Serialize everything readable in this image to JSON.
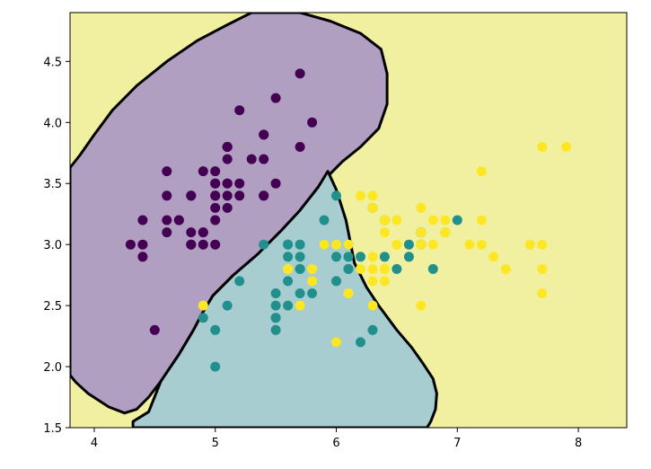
{
  "chart_data": {
    "type": "scatter",
    "title": "",
    "xlabel": "",
    "ylabel": "",
    "xlim": [
      3.8,
      8.4
    ],
    "ylim": [
      1.5,
      4.9
    ],
    "x_ticks": [
      4,
      5,
      6,
      7,
      8
    ],
    "y_ticks": [
      1.5,
      2.0,
      2.5,
      3.0,
      3.5,
      4.0,
      4.5
    ],
    "x_tick_labels": [
      "4",
      "5",
      "6",
      "7",
      "8"
    ],
    "y_tick_labels": [
      "1.5",
      "2.0",
      "2.5",
      "3.0",
      "3.5",
      "4.0",
      "4.5"
    ],
    "grid": false,
    "legend": false,
    "regions": [
      {
        "class": 0,
        "color": "#b19fc1",
        "boundary": [
          [
            3.8,
            3.63
          ],
          [
            3.88,
            3.73
          ],
          [
            4.0,
            3.9
          ],
          [
            4.15,
            4.1
          ],
          [
            4.35,
            4.3
          ],
          [
            4.6,
            4.5
          ],
          [
            4.85,
            4.67
          ],
          [
            5.1,
            4.8
          ],
          [
            5.3,
            4.9
          ],
          [
            5.7,
            4.9
          ],
          [
            5.95,
            4.83
          ],
          [
            6.2,
            4.73
          ],
          [
            6.37,
            4.6
          ],
          [
            6.42,
            4.4
          ],
          [
            6.42,
            4.15
          ],
          [
            6.35,
            3.95
          ],
          [
            6.2,
            3.8
          ],
          [
            6.05,
            3.68
          ],
          [
            5.95,
            3.58
          ],
          [
            5.85,
            3.47
          ],
          [
            5.7,
            3.28
          ],
          [
            5.55,
            3.12
          ],
          [
            5.35,
            2.92
          ],
          [
            5.15,
            2.75
          ],
          [
            4.98,
            2.58
          ],
          [
            4.9,
            2.45
          ],
          [
            4.82,
            2.3
          ],
          [
            4.7,
            2.1
          ],
          [
            4.55,
            1.88
          ],
          [
            4.45,
            1.75
          ],
          [
            4.35,
            1.65
          ],
          [
            4.25,
            1.62
          ],
          [
            4.12,
            1.67
          ],
          [
            3.95,
            1.78
          ],
          [
            3.85,
            1.87
          ],
          [
            3.8,
            1.93
          ]
        ]
      },
      {
        "class": 1,
        "color": "#a8cdd0",
        "boundary": [
          [
            4.32,
            1.5
          ],
          [
            4.32,
            1.55
          ],
          [
            4.45,
            1.63
          ],
          [
            4.55,
            1.88
          ],
          [
            4.7,
            2.1
          ],
          [
            4.82,
            2.3
          ],
          [
            4.9,
            2.45
          ],
          [
            4.98,
            2.58
          ],
          [
            5.15,
            2.75
          ],
          [
            5.35,
            2.92
          ],
          [
            5.55,
            3.12
          ],
          [
            5.7,
            3.28
          ],
          [
            5.85,
            3.47
          ],
          [
            5.93,
            3.6
          ],
          [
            6.0,
            3.45
          ],
          [
            6.08,
            3.2
          ],
          [
            6.15,
            2.85
          ],
          [
            6.25,
            2.65
          ],
          [
            6.35,
            2.5
          ],
          [
            6.5,
            2.3
          ],
          [
            6.62,
            2.16
          ],
          [
            6.72,
            2.02
          ],
          [
            6.8,
            1.9
          ],
          [
            6.83,
            1.78
          ],
          [
            6.82,
            1.65
          ],
          [
            6.78,
            1.55
          ],
          [
            6.75,
            1.5
          ]
        ]
      }
    ],
    "series": [
      {
        "class": 0,
        "color": "#440154",
        "points": [
          [
            5.1,
            3.5
          ],
          [
            4.9,
            3.0
          ],
          [
            4.7,
            3.2
          ],
          [
            4.6,
            3.1
          ],
          [
            5.0,
            3.6
          ],
          [
            5.4,
            3.9
          ],
          [
            4.6,
            3.4
          ],
          [
            5.0,
            3.4
          ],
          [
            4.4,
            2.9
          ],
          [
            4.9,
            3.1
          ],
          [
            5.4,
            3.7
          ],
          [
            4.8,
            3.4
          ],
          [
            4.8,
            3.0
          ],
          [
            4.3,
            3.0
          ],
          [
            5.8,
            4.0
          ],
          [
            5.7,
            4.4
          ],
          [
            5.4,
            3.9
          ],
          [
            5.1,
            3.5
          ],
          [
            5.7,
            3.8
          ],
          [
            5.1,
            3.8
          ],
          [
            5.4,
            3.4
          ],
          [
            5.1,
            3.7
          ],
          [
            4.6,
            3.6
          ],
          [
            5.1,
            3.3
          ],
          [
            4.8,
            3.4
          ],
          [
            5.0,
            3.0
          ],
          [
            5.0,
            3.4
          ],
          [
            5.2,
            3.5
          ],
          [
            5.2,
            3.4
          ],
          [
            4.7,
            3.2
          ],
          [
            4.8,
            3.1
          ],
          [
            5.4,
            3.4
          ],
          [
            5.2,
            4.1
          ],
          [
            5.5,
            4.2
          ],
          [
            4.9,
            3.1
          ],
          [
            5.0,
            3.2
          ],
          [
            5.5,
            3.5
          ],
          [
            4.9,
            3.6
          ],
          [
            4.4,
            3.0
          ],
          [
            5.1,
            3.4
          ],
          [
            5.0,
            3.5
          ],
          [
            4.5,
            2.3
          ],
          [
            4.4,
            3.2
          ],
          [
            5.0,
            3.5
          ],
          [
            5.1,
            3.8
          ],
          [
            4.8,
            3.0
          ],
          [
            5.1,
            3.8
          ],
          [
            4.6,
            3.2
          ],
          [
            5.3,
            3.7
          ],
          [
            5.0,
            3.3
          ]
        ]
      },
      {
        "class": 1,
        "color": "#21908d",
        "points": [
          [
            7.0,
            3.2
          ],
          [
            6.4,
            3.2
          ],
          [
            6.9,
            3.1
          ],
          [
            5.5,
            2.3
          ],
          [
            6.5,
            2.8
          ],
          [
            5.7,
            2.8
          ],
          [
            6.3,
            3.3
          ],
          [
            4.9,
            2.4
          ],
          [
            6.6,
            2.9
          ],
          [
            5.2,
            2.7
          ],
          [
            5.0,
            2.0
          ],
          [
            5.9,
            3.0
          ],
          [
            6.0,
            2.2
          ],
          [
            6.1,
            2.9
          ],
          [
            5.6,
            2.9
          ],
          [
            6.7,
            3.1
          ],
          [
            5.6,
            3.0
          ],
          [
            5.8,
            2.7
          ],
          [
            6.2,
            2.2
          ],
          [
            5.6,
            2.5
          ],
          [
            5.9,
            3.2
          ],
          [
            6.1,
            2.8
          ],
          [
            6.3,
            2.5
          ],
          [
            6.1,
            2.8
          ],
          [
            6.4,
            2.9
          ],
          [
            6.6,
            3.0
          ],
          [
            6.8,
            2.8
          ],
          [
            6.7,
            3.0
          ],
          [
            6.0,
            2.9
          ],
          [
            5.7,
            2.6
          ],
          [
            5.5,
            2.4
          ],
          [
            5.5,
            2.4
          ],
          [
            5.8,
            2.7
          ],
          [
            6.0,
            2.7
          ],
          [
            5.4,
            3.0
          ],
          [
            6.0,
            3.4
          ],
          [
            6.7,
            3.1
          ],
          [
            6.3,
            2.3
          ],
          [
            5.6,
            3.0
          ],
          [
            5.5,
            2.5
          ],
          [
            5.5,
            2.6
          ],
          [
            6.1,
            3.0
          ],
          [
            5.8,
            2.6
          ],
          [
            5.0,
            2.3
          ],
          [
            5.6,
            2.7
          ],
          [
            5.7,
            3.0
          ],
          [
            5.7,
            2.9
          ],
          [
            6.2,
            2.9
          ],
          [
            5.1,
            2.5
          ],
          [
            5.7,
            2.8
          ]
        ]
      },
      {
        "class": 2,
        "color": "#fde725",
        "points": [
          [
            6.3,
            3.3
          ],
          [
            5.8,
            2.7
          ],
          [
            7.1,
            3.0
          ],
          [
            6.3,
            2.9
          ],
          [
            6.5,
            3.0
          ],
          [
            7.6,
            3.0
          ],
          [
            4.9,
            2.5
          ],
          [
            7.3,
            2.9
          ],
          [
            6.7,
            2.5
          ],
          [
            7.2,
            3.6
          ],
          [
            6.5,
            3.2
          ],
          [
            6.4,
            2.7
          ],
          [
            6.8,
            3.0
          ],
          [
            5.7,
            2.5
          ],
          [
            5.8,
            2.8
          ],
          [
            6.4,
            3.2
          ],
          [
            6.5,
            3.0
          ],
          [
            7.7,
            3.8
          ],
          [
            7.7,
            2.6
          ],
          [
            6.0,
            2.2
          ],
          [
            6.9,
            3.2
          ],
          [
            5.6,
            2.8
          ],
          [
            7.7,
            2.8
          ],
          [
            6.3,
            2.7
          ],
          [
            6.7,
            3.3
          ],
          [
            7.2,
            3.2
          ],
          [
            6.2,
            2.8
          ],
          [
            6.1,
            3.0
          ],
          [
            6.4,
            2.8
          ],
          [
            7.2,
            3.0
          ],
          [
            7.4,
            2.8
          ],
          [
            7.9,
            3.8
          ],
          [
            6.4,
            2.8
          ],
          [
            6.3,
            2.8
          ],
          [
            6.1,
            2.6
          ],
          [
            7.7,
            3.0
          ],
          [
            6.3,
            3.4
          ],
          [
            6.4,
            3.1
          ],
          [
            6.0,
            3.0
          ],
          [
            6.9,
            3.1
          ],
          [
            6.7,
            3.1
          ],
          [
            6.9,
            3.1
          ],
          [
            5.8,
            2.7
          ],
          [
            6.8,
            3.2
          ],
          [
            6.7,
            3.3
          ],
          [
            6.7,
            3.0
          ],
          [
            6.3,
            2.5
          ],
          [
            6.5,
            3.0
          ],
          [
            6.2,
            3.4
          ],
          [
            5.9,
            3.0
          ]
        ]
      }
    ],
    "background_color": "#f0f0a0",
    "boundary_line_color": "#000000"
  }
}
